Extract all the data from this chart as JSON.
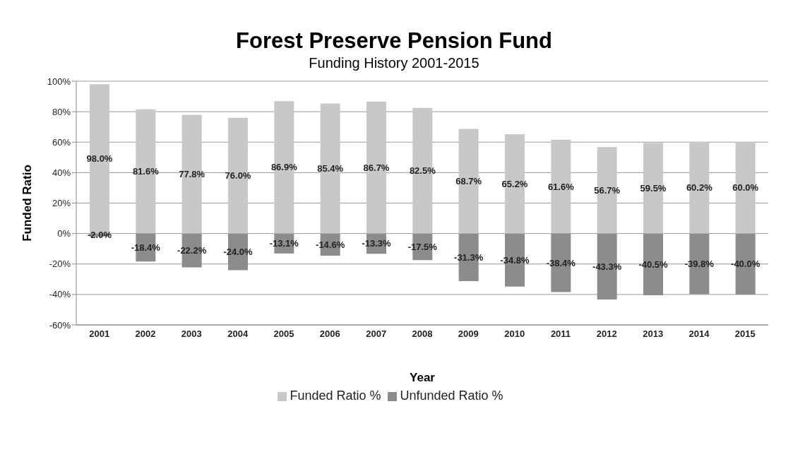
{
  "chart_data": {
    "type": "bar",
    "title": "Forest Preserve Pension Fund",
    "subtitle": "Funding History 2001-2015",
    "xlabel": "Year",
    "ylabel": "Funded Ratio",
    "categories": [
      "2001",
      "2002",
      "2003",
      "2004",
      "2005",
      "2006",
      "2007",
      "2008",
      "2009",
      "2010",
      "2011",
      "2012",
      "2013",
      "2014",
      "2015"
    ],
    "series": [
      {
        "name": "Funded Ratio %",
        "color": "#c8c8c8",
        "values": [
          98.0,
          81.6,
          77.8,
          76.0,
          86.9,
          85.4,
          86.7,
          82.5,
          68.7,
          65.2,
          61.6,
          56.7,
          59.5,
          60.2,
          60.0
        ],
        "value_labels": [
          "98.0%",
          "81.6%",
          "77.8%",
          "76.0%",
          "86.9%",
          "85.4%",
          "86.7%",
          "82.5%",
          "68.7%",
          "65.2%",
          "61.6%",
          "56.7%",
          "59.5%",
          "60.2%",
          "60.0%"
        ]
      },
      {
        "name": "Unfunded Ratio %",
        "color": "#8c8c8c",
        "values": [
          -2.0,
          -18.4,
          -22.2,
          -24.0,
          -13.1,
          -14.6,
          -13.3,
          -17.5,
          -31.3,
          -34.8,
          -38.4,
          -43.3,
          -40.5,
          -39.8,
          -40.0
        ],
        "value_labels": [
          "-2.0%",
          "-18.4%",
          "-22.2%",
          "-24.0%",
          "-13.1%",
          "-14.6%",
          "-13.3%",
          "-17.5%",
          "-31.3%",
          "-34.8%",
          "-38.4%",
          "-43.3%",
          "-40.5%",
          "-39.8%",
          "-40.0%"
        ]
      }
    ],
    "stacked": true,
    "ylim": [
      -60,
      100
    ],
    "yticks": [
      {
        "value": -60,
        "label": "-60%"
      },
      {
        "value": -40,
        "label": "-40%"
      },
      {
        "value": -20,
        "label": "-20%"
      },
      {
        "value": 0,
        "label": "0%"
      },
      {
        "value": 20,
        "label": "20%"
      },
      {
        "value": 40,
        "label": "40%"
      },
      {
        "value": 60,
        "label": "60%"
      },
      {
        "value": 80,
        "label": "80%"
      },
      {
        "value": 100,
        "label": "100%"
      }
    ],
    "grid": "y",
    "legend": "bottom"
  }
}
